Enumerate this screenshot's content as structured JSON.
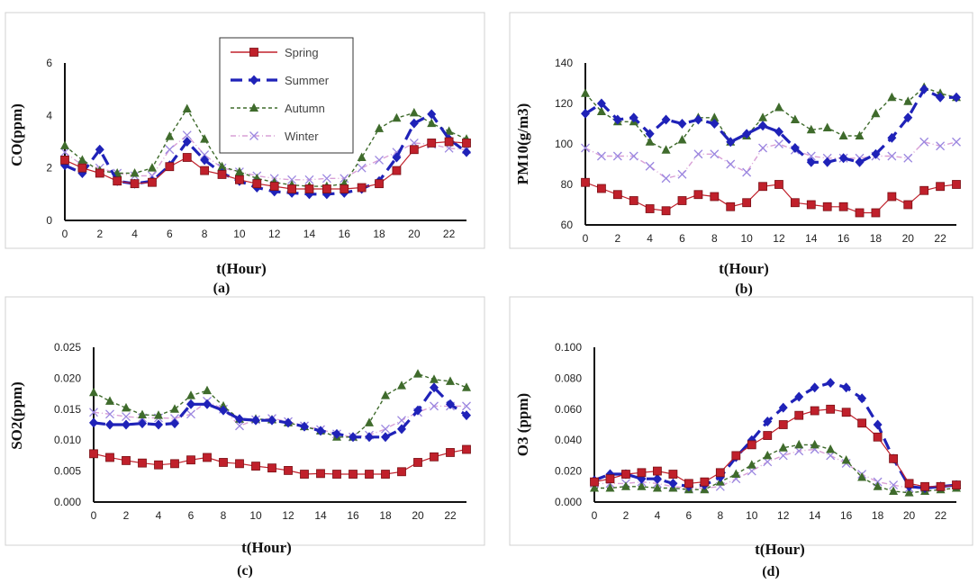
{
  "chart_data": [
    {
      "type": "line",
      "panel": "(a)",
      "ylabel": "CO(ppm)",
      "xlabel": "t(Hour)",
      "ylim": [
        0,
        6
      ],
      "yticks": [
        "0",
        "2",
        "4",
        "6"
      ],
      "xlim": [
        0,
        23
      ],
      "xticks": [
        "0",
        "2",
        "4",
        "6",
        "8",
        "10",
        "12",
        "14",
        "16",
        "18",
        "20",
        "22"
      ],
      "legend": {
        "position": "top-center",
        "entries": [
          "Spring",
          "Summer",
          "Autumn",
          "Winter"
        ]
      },
      "x": [
        0,
        1,
        2,
        3,
        4,
        5,
        6,
        7,
        8,
        9,
        10,
        11,
        12,
        13,
        14,
        15,
        16,
        17,
        18,
        19,
        20,
        21,
        22,
        23
      ],
      "series": [
        {
          "name": "Spring",
          "values": [
            2.3,
            2.0,
            1.8,
            1.5,
            1.4,
            1.45,
            2.05,
            2.4,
            1.9,
            1.75,
            1.55,
            1.4,
            1.3,
            1.2,
            1.2,
            1.2,
            1.2,
            1.25,
            1.4,
            1.9,
            2.7,
            2.95,
            3.0,
            2.95
          ]
        },
        {
          "name": "Summer",
          "values": [
            2.1,
            1.8,
            2.7,
            1.5,
            1.4,
            1.5,
            2.1,
            3.0,
            2.3,
            1.8,
            1.5,
            1.25,
            1.1,
            1.05,
            1.0,
            1.0,
            1.05,
            1.2,
            1.5,
            2.4,
            3.7,
            4.05,
            3.1,
            2.6
          ]
        },
        {
          "name": "Autumn",
          "values": [
            2.85,
            2.3,
            1.9,
            1.8,
            1.8,
            2.0,
            3.2,
            4.25,
            3.1,
            2.05,
            1.85,
            1.6,
            1.45,
            1.35,
            1.3,
            1.3,
            1.4,
            2.4,
            3.5,
            3.9,
            4.1,
            3.7,
            3.4,
            3.1
          ]
        },
        {
          "name": "Winter",
          "values": [
            2.6,
            2.1,
            2.0,
            1.8,
            1.7,
            1.7,
            2.7,
            3.25,
            2.5,
            2.0,
            1.85,
            1.7,
            1.6,
            1.55,
            1.55,
            1.6,
            1.6,
            2.0,
            2.3,
            2.6,
            2.95,
            2.9,
            2.75,
            2.7
          ]
        }
      ]
    },
    {
      "type": "line",
      "panel": "(b)",
      "ylabel": "PM10(g/m3)",
      "xlabel": "t(Hour)",
      "ylim": [
        60,
        140
      ],
      "yticks": [
        "60",
        "80",
        "100",
        "120",
        "140"
      ],
      "xlim": [
        0,
        23
      ],
      "xticks": [
        "0",
        "2",
        "4",
        "6",
        "8",
        "10",
        "12",
        "14",
        "16",
        "18",
        "20",
        "22"
      ],
      "x": [
        0,
        1,
        2,
        3,
        4,
        5,
        6,
        7,
        8,
        9,
        10,
        11,
        12,
        13,
        14,
        15,
        16,
        17,
        18,
        19,
        20,
        21,
        22,
        23
      ],
      "series": [
        {
          "name": "Spring",
          "values": [
            81,
            78,
            75,
            72,
            68,
            67,
            72,
            75,
            74,
            69,
            71,
            79,
            80,
            71,
            70,
            69,
            69,
            66,
            66,
            74,
            70,
            77,
            79,
            80
          ]
        },
        {
          "name": "Summer",
          "values": [
            115,
            120,
            112,
            113,
            105,
            112,
            110,
            112,
            110,
            101,
            105,
            109,
            106,
            98,
            91,
            91,
            93,
            91,
            95,
            103,
            113,
            127,
            123,
            123
          ]
        },
        {
          "name": "Autumn",
          "values": [
            125,
            116,
            111,
            111,
            101,
            97,
            102,
            113,
            113,
            101,
            104,
            113,
            118,
            112,
            107,
            108,
            104,
            104,
            115,
            123,
            121,
            128,
            125,
            123
          ]
        },
        {
          "name": "Winter",
          "values": [
            98,
            94,
            94,
            94,
            89,
            83,
            85,
            95,
            95,
            90,
            86,
            98,
            100,
            97,
            94,
            93,
            93,
            93,
            94,
            94,
            93,
            101,
            99,
            101
          ]
        }
      ]
    },
    {
      "type": "line",
      "panel": "(c)",
      "ylabel": "SO2(ppm)",
      "xlabel": "t(Hour)",
      "ylim": [
        0,
        0.025
      ],
      "yticks": [
        "0.000",
        "0.005",
        "0.010",
        "0.015",
        "0.020",
        "0.025"
      ],
      "xlim": [
        0,
        23
      ],
      "xticks": [
        "0",
        "2",
        "4",
        "6",
        "8",
        "10",
        "12",
        "14",
        "16",
        "18",
        "20",
        "22"
      ],
      "x": [
        0,
        1,
        2,
        3,
        4,
        5,
        6,
        7,
        8,
        9,
        10,
        11,
        12,
        13,
        14,
        15,
        16,
        17,
        18,
        19,
        20,
        21,
        22,
        23
      ],
      "series": [
        {
          "name": "Spring",
          "values": [
            0.0078,
            0.0072,
            0.0067,
            0.0063,
            0.006,
            0.0062,
            0.0068,
            0.0072,
            0.0064,
            0.0062,
            0.0058,
            0.0055,
            0.0051,
            0.0045,
            0.0046,
            0.0045,
            0.0045,
            0.0045,
            0.0045,
            0.0049,
            0.0064,
            0.0073,
            0.008,
            0.0085
          ]
        },
        {
          "name": "Summer",
          "values": [
            0.0128,
            0.0125,
            0.0125,
            0.0127,
            0.0125,
            0.0127,
            0.0158,
            0.0158,
            0.0148,
            0.0134,
            0.0132,
            0.0132,
            0.0128,
            0.0122,
            0.0115,
            0.011,
            0.0105,
            0.0105,
            0.0105,
            0.0118,
            0.0148,
            0.0185,
            0.0158,
            0.014
          ]
        },
        {
          "name": "Autumn",
          "values": [
            0.0177,
            0.0163,
            0.0152,
            0.0141,
            0.014,
            0.015,
            0.0172,
            0.018,
            0.0155,
            0.0134,
            0.0134,
            0.0133,
            0.0128,
            0.0122,
            0.0115,
            0.0105,
            0.0105,
            0.0128,
            0.0172,
            0.0188,
            0.0207,
            0.0198,
            0.0195,
            0.0185
          ]
        },
        {
          "name": "Winter",
          "values": [
            0.0145,
            0.0142,
            0.0138,
            0.0136,
            0.0136,
            0.0135,
            0.0142,
            0.0163,
            0.015,
            0.0123,
            0.0133,
            0.0135,
            0.013,
            0.0123,
            0.0117,
            0.011,
            0.0105,
            0.0108,
            0.0118,
            0.0132,
            0.0145,
            0.0155,
            0.0155,
            0.0155
          ]
        }
      ]
    },
    {
      "type": "line",
      "panel": "(d)",
      "ylabel": "O3 (ppm)",
      "xlabel": "t(Hour)",
      "ylim": [
        0,
        0.1
      ],
      "yticks": [
        "0.000",
        "0.020",
        "0.040",
        "0.060",
        "0.080",
        "0.100"
      ],
      "xlim": [
        0,
        23
      ],
      "xticks": [
        "0",
        "2",
        "4",
        "6",
        "8",
        "10",
        "12",
        "14",
        "16",
        "18",
        "20",
        "22"
      ],
      "x": [
        0,
        1,
        2,
        3,
        4,
        5,
        6,
        7,
        8,
        9,
        10,
        11,
        12,
        13,
        14,
        15,
        16,
        17,
        18,
        19,
        20,
        21,
        22,
        23
      ],
      "series": [
        {
          "name": "Spring",
          "values": [
            0.013,
            0.015,
            0.018,
            0.019,
            0.02,
            0.018,
            0.012,
            0.013,
            0.019,
            0.03,
            0.037,
            0.043,
            0.05,
            0.056,
            0.059,
            0.06,
            0.058,
            0.051,
            0.042,
            0.028,
            0.012,
            0.01,
            0.01,
            0.011
          ]
        },
        {
          "name": "Summer",
          "values": [
            0.014,
            0.018,
            0.018,
            0.015,
            0.015,
            0.012,
            0.01,
            0.011,
            0.016,
            0.029,
            0.04,
            0.052,
            0.061,
            0.068,
            0.074,
            0.077,
            0.074,
            0.067,
            0.05,
            0.028,
            0.01,
            0.009,
            0.01,
            0.011
          ]
        },
        {
          "name": "Autumn",
          "values": [
            0.009,
            0.009,
            0.01,
            0.01,
            0.009,
            0.009,
            0.008,
            0.008,
            0.013,
            0.018,
            0.024,
            0.03,
            0.035,
            0.037,
            0.037,
            0.034,
            0.027,
            0.016,
            0.01,
            0.007,
            0.006,
            0.007,
            0.008,
            0.009
          ]
        },
        {
          "name": "Winter",
          "values": [
            0.012,
            0.012,
            0.012,
            0.013,
            0.012,
            0.01,
            0.009,
            0.009,
            0.01,
            0.015,
            0.02,
            0.026,
            0.03,
            0.033,
            0.034,
            0.03,
            0.025,
            0.018,
            0.013,
            0.011,
            0.009,
            0.009,
            0.01,
            0.011
          ]
        }
      ]
    }
  ],
  "styles": {
    "Spring": {
      "color": "#c0202b",
      "marker": "square",
      "dash": ""
    },
    "Summer": {
      "color": "#1f22b8",
      "marker": "diamond",
      "dash": "13,7"
    },
    "Autumn": {
      "color": "#3f6b2c",
      "marker": "triangle",
      "dash": "4,3"
    },
    "Winter": {
      "color": "#d9a0d6",
      "marker": "x",
      "dash": "6,3,1,3",
      "markerColor": "#9b87e0"
    }
  }
}
